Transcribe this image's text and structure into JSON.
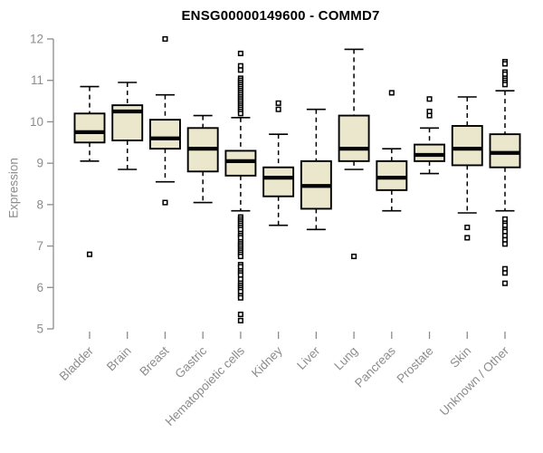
{
  "title": "ENSG00000149600 - COMMD7",
  "colors": {
    "background": "#ffffff",
    "box_fill": "#ebe7cc",
    "box_stroke": "#000000",
    "median": "#000000",
    "axis": "#8c8c8c",
    "axis_text": "#8c8c8c",
    "title_text": "#000000"
  },
  "chart_data": {
    "type": "boxplot",
    "title": "ENSG00000149600 - COMMD7",
    "xlabel": "",
    "ylabel": "Expression",
    "ylim": [
      5,
      12
    ],
    "yticks": [
      5,
      6,
      7,
      8,
      9,
      10,
      11,
      12
    ],
    "grid": false,
    "legend": false,
    "categories": [
      "Bladder",
      "Brain",
      "Breast",
      "Gastric",
      "Hematopoietic cells",
      "Kidney",
      "Liver",
      "Lung",
      "Pancreas",
      "Prostate",
      "Skin",
      "Unknown / Other"
    ],
    "series": [
      {
        "name": "Bladder",
        "whisker_low": 9.05,
        "q1": 9.5,
        "median": 9.75,
        "q3": 10.2,
        "whisker_high": 10.85,
        "outliers": [
          6.8
        ]
      },
      {
        "name": "Brain",
        "whisker_low": 8.85,
        "q1": 9.55,
        "median": 10.25,
        "q3": 10.4,
        "whisker_high": 10.95,
        "outliers": []
      },
      {
        "name": "Breast",
        "whisker_low": 8.55,
        "q1": 9.35,
        "median": 9.6,
        "q3": 10.05,
        "whisker_high": 10.65,
        "outliers": [
          12.0,
          8.05
        ]
      },
      {
        "name": "Gastric",
        "whisker_low": 8.05,
        "q1": 8.8,
        "median": 9.35,
        "q3": 9.85,
        "whisker_high": 10.15,
        "outliers": []
      },
      {
        "name": "Hematopoietic cells",
        "whisker_low": 7.85,
        "q1": 8.7,
        "median": 9.05,
        "q3": 9.3,
        "whisker_high": 10.1,
        "outliers": [
          11.65,
          11.35,
          11.25,
          11.05,
          11.0,
          10.95,
          10.9,
          10.85,
          10.8,
          10.75,
          10.7,
          10.65,
          10.6,
          10.55,
          10.5,
          10.45,
          10.4,
          10.35,
          10.3,
          10.25,
          10.2,
          7.7,
          7.65,
          7.6,
          7.55,
          7.5,
          7.45,
          7.4,
          7.3,
          7.25,
          7.2,
          7.1,
          7.05,
          7.0,
          6.95,
          6.9,
          6.85,
          6.8,
          6.75,
          6.55,
          6.5,
          6.4,
          6.35,
          6.3,
          6.2,
          6.1,
          6.05,
          6.0,
          5.95,
          5.9,
          5.8,
          5.75,
          5.35,
          5.2
        ]
      },
      {
        "name": "Kidney",
        "whisker_low": 7.5,
        "q1": 8.2,
        "median": 8.65,
        "q3": 8.9,
        "whisker_high": 9.7,
        "outliers": [
          10.45,
          10.3
        ]
      },
      {
        "name": "Liver",
        "whisker_low": 7.4,
        "q1": 7.9,
        "median": 8.45,
        "q3": 9.05,
        "whisker_high": 10.3,
        "outliers": []
      },
      {
        "name": "Lung",
        "whisker_low": 8.85,
        "q1": 9.05,
        "median": 9.35,
        "q3": 10.15,
        "whisker_high": 11.75,
        "outliers": [
          6.75
        ]
      },
      {
        "name": "Pancreas",
        "whisker_low": 7.85,
        "q1": 8.35,
        "median": 8.65,
        "q3": 9.05,
        "whisker_high": 9.35,
        "outliers": [
          10.7
        ]
      },
      {
        "name": "Prostate",
        "whisker_low": 8.75,
        "q1": 9.05,
        "median": 9.2,
        "q3": 9.45,
        "whisker_high": 9.85,
        "outliers": [
          10.55,
          10.25,
          10.15
        ]
      },
      {
        "name": "Skin",
        "whisker_low": 7.8,
        "q1": 8.95,
        "median": 9.35,
        "q3": 9.9,
        "whisker_high": 10.6,
        "outliers": [
          7.45,
          7.2
        ]
      },
      {
        "name": "Unknown / Other",
        "whisker_low": 7.85,
        "q1": 8.9,
        "median": 9.25,
        "q3": 9.7,
        "whisker_high": 10.75,
        "outliers": [
          11.45,
          11.4,
          11.2,
          11.15,
          11.05,
          11.0,
          10.95,
          10.9,
          7.65,
          7.55,
          7.5,
          7.4,
          7.35,
          7.25,
          7.15,
          7.05,
          6.45,
          6.35,
          6.1
        ]
      }
    ]
  }
}
